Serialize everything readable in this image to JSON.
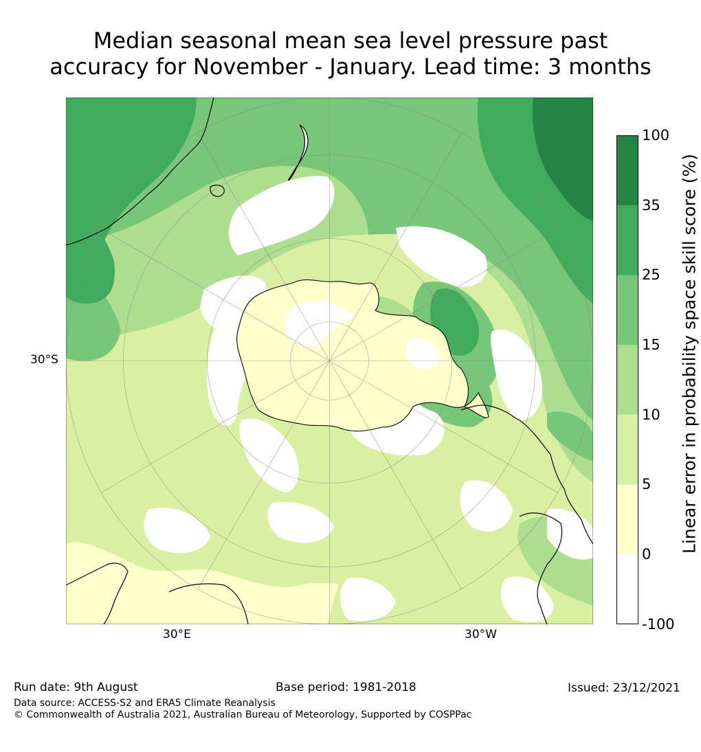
{
  "title": {
    "line1": "Median seasonal mean sea level pressure past",
    "line2": "accuracy for November - January. Lead time: 3 months"
  },
  "map": {
    "projection": "south-polar-stereographic",
    "lat_labels": {
      "left": "30°S",
      "bottom_left": "30°E",
      "bottom_right": "30°W"
    },
    "land_outline_color": "#000000",
    "grid_color": "#888888"
  },
  "colorbar": {
    "title": "Linear error in probability space skill score (%)",
    "ticks": [
      "100",
      "35",
      "25",
      "15",
      "10",
      "5",
      "0",
      "-100"
    ],
    "bins": [
      {
        "range": "35-100",
        "color": "#238443"
      },
      {
        "range": "25-35",
        "color": "#41ab5d"
      },
      {
        "range": "15-25",
        "color": "#78c679"
      },
      {
        "range": "10-15",
        "color": "#addd8e"
      },
      {
        "range": "5-10",
        "color": "#d9f0a3"
      },
      {
        "range": "0-5",
        "color": "#ffffcc"
      },
      {
        "range": "-100-0",
        "color": "#ffffff"
      }
    ]
  },
  "footer": {
    "run_date": "Run date: 9th August",
    "base_period": "Base period: 1981-2018",
    "issued": "Issued: 23/12/2021",
    "data_source": "Data source: ACCESS-S2 and ERA5 Climate Reanalysis",
    "copyright": "© Commonwealth of Australia 2021, Australian Bureau of Meteorology, Supported by COSPPac"
  }
}
